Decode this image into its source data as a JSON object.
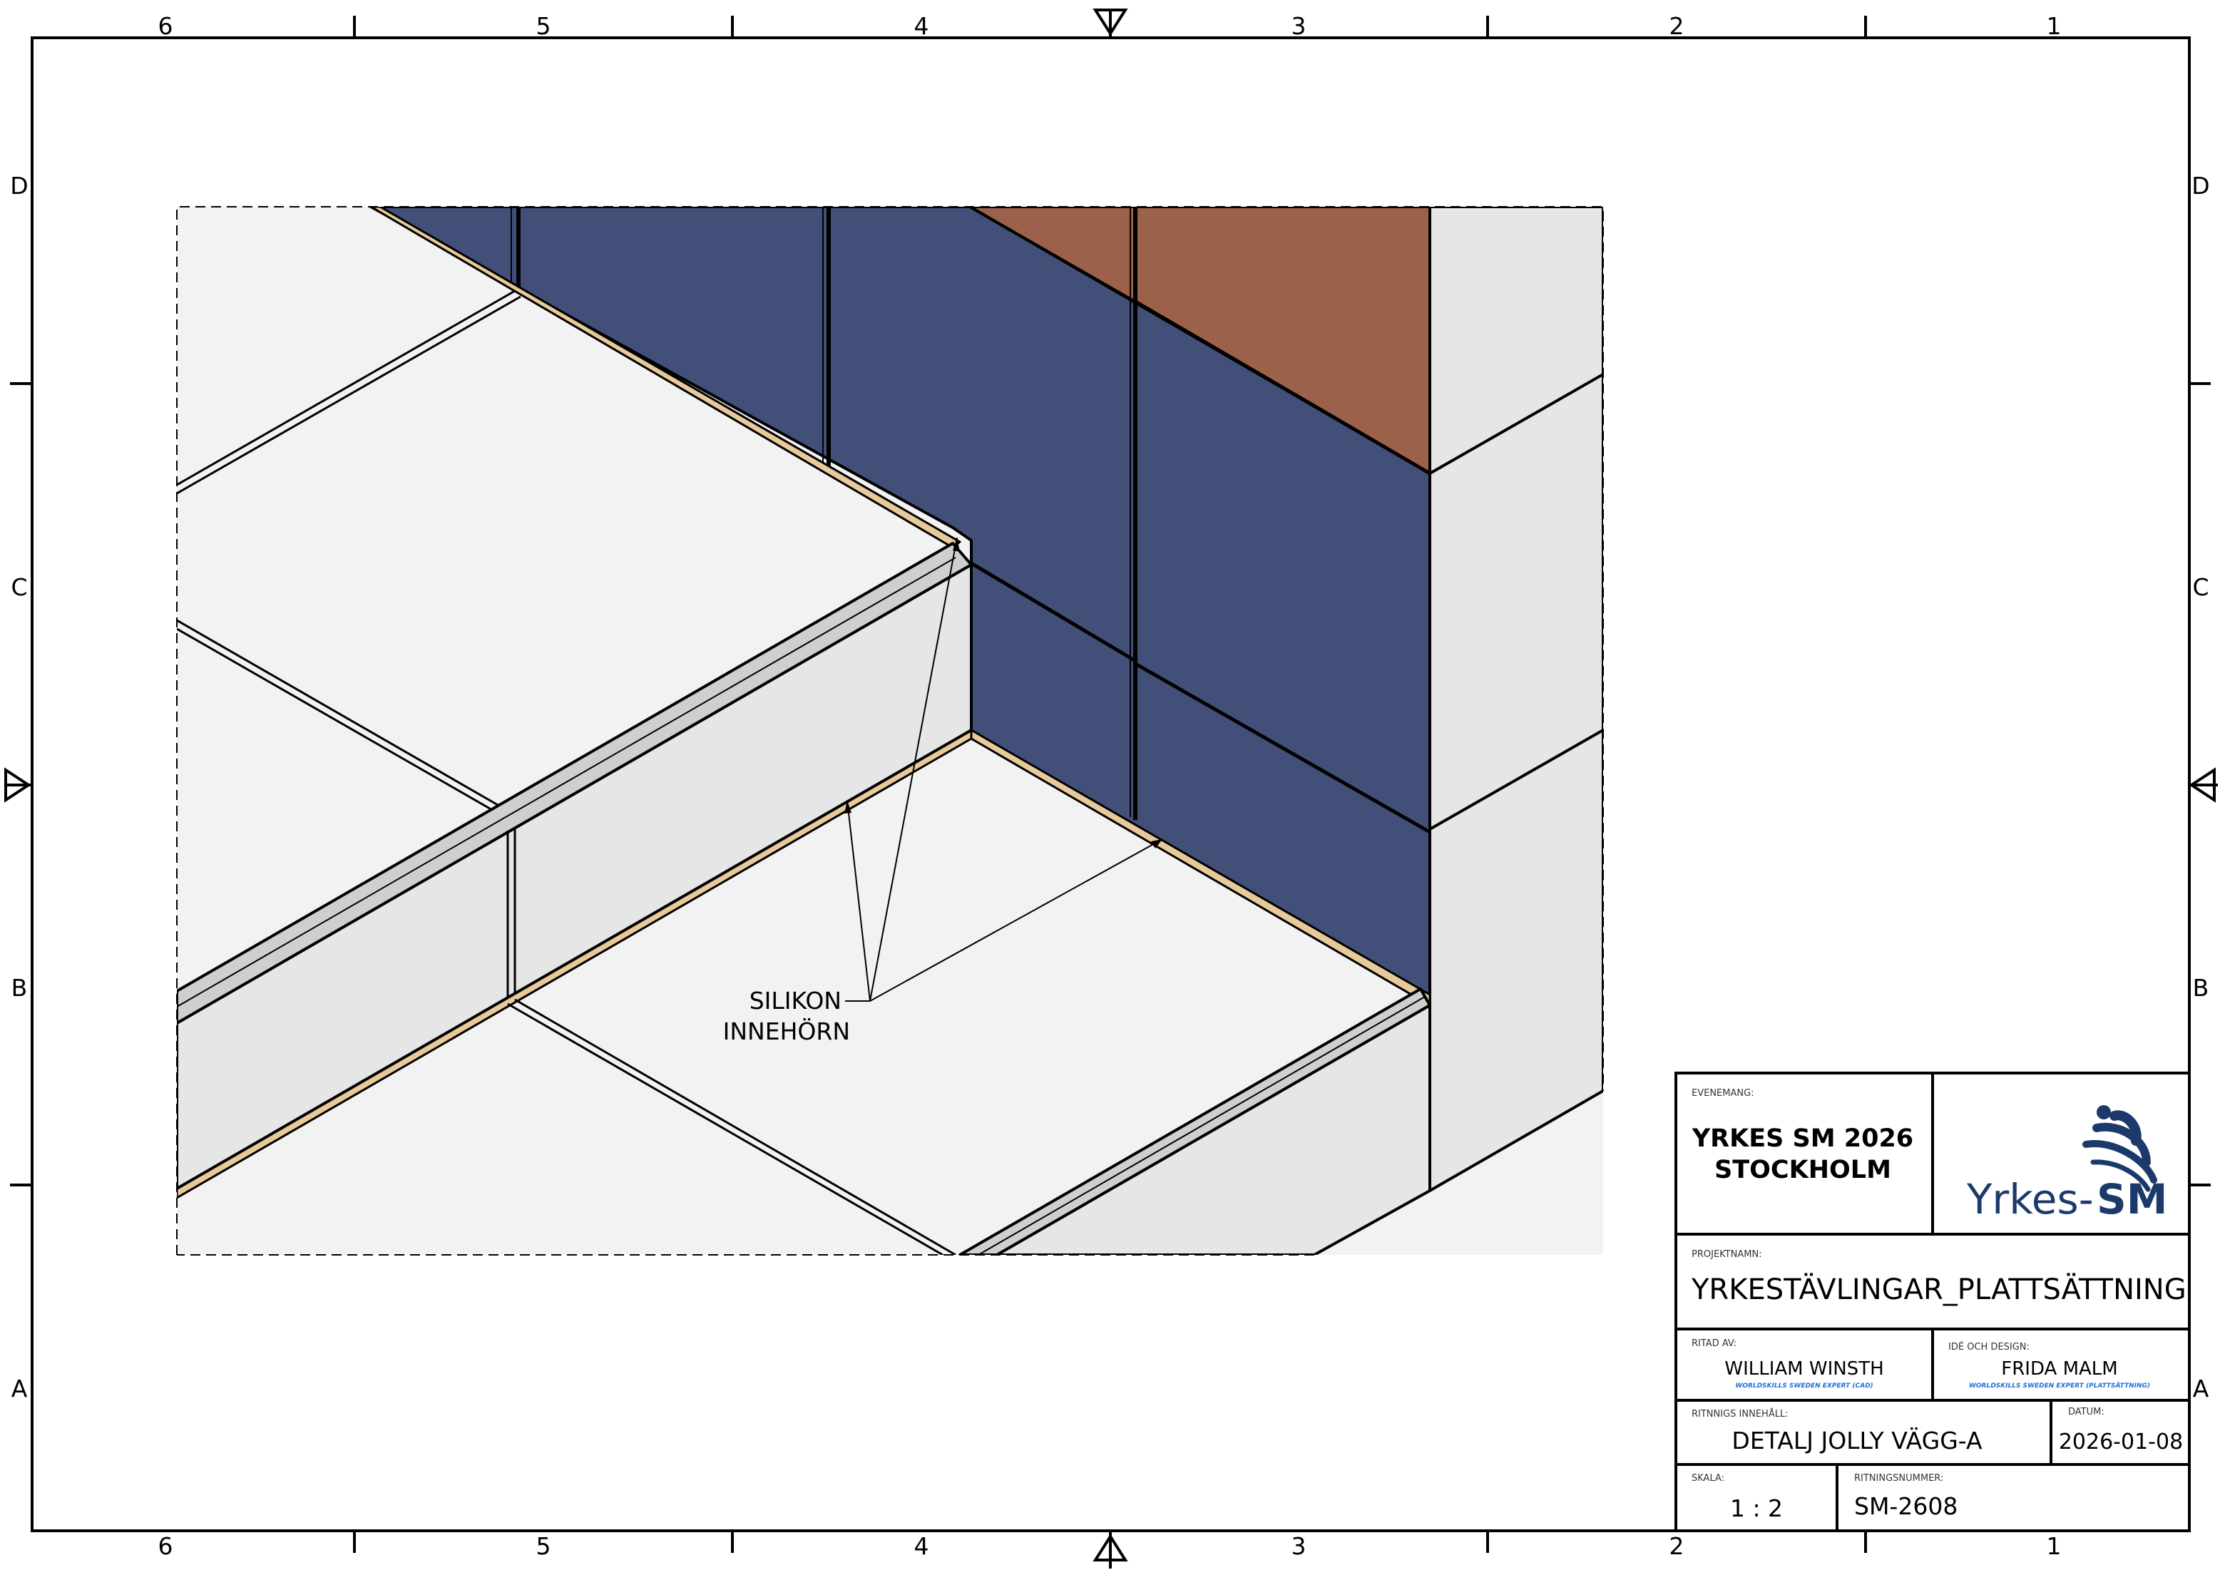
{
  "grid": {
    "columns": [
      "6",
      "5",
      "4",
      "3",
      "2",
      "1"
    ],
    "rows": [
      "D",
      "C",
      "B",
      "A"
    ]
  },
  "annotation": {
    "line1": "SILIKON",
    "line2": "INNEHÖRN"
  },
  "colors": {
    "floor_tile": "#f2f2f2",
    "step_face": "#e6e6e6",
    "jolly_edge": "#cfcfcf",
    "wall_blue": "#424f78",
    "wall_brown": "#9c614a",
    "silicone": "#e8c99a",
    "logo_blue": "#1b3a6b"
  },
  "title_block": {
    "event_caption": "EVENEMANG:",
    "event_line1": "YRKES SM 2026",
    "event_line2": "STOCKHOLM",
    "logo_text_a": "Yrkes-",
    "logo_text_b": "SM",
    "project_caption": "PROJEKTNAMN:",
    "project": "YRKESTÄVLINGAR_PLATTSÄTTNING",
    "drawn_by_caption": "RITAD AV:",
    "drawn_by": "WILLIAM WINSTH",
    "drawn_by_role": "WORLDSKILLS SWEDEN EXPERT (CAD)",
    "design_caption": "IDÉ OCH DESIGN:",
    "design_by": "FRIDA MALM",
    "design_role": "WORLDSKILLS SWEDEN EXPERT (PLATTSÄTTNING)",
    "content_caption": "RITNNIGS INNEHÅLL:",
    "content": "DETALJ JOLLY VÄGG-A",
    "date_caption": "DATUM:",
    "date": "2026-01-08",
    "scale_caption": "SKALA:",
    "scale": "1 : 2",
    "number_caption": "RITNINGSNUMMER:",
    "number": "SM-2608"
  }
}
